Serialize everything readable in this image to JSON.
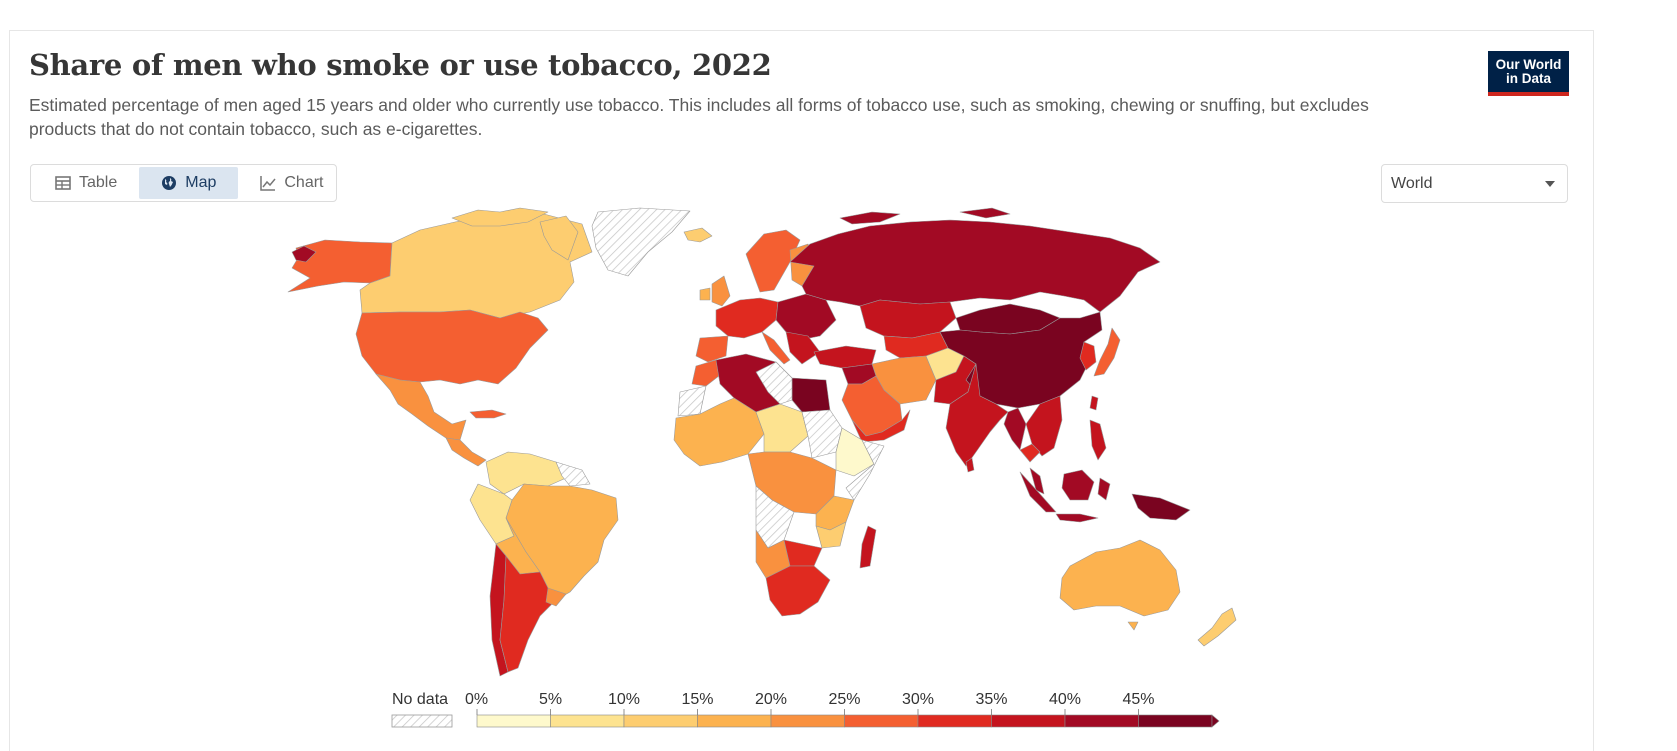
{
  "header": {
    "title": "Share of men who smoke or use tobacco, 2022",
    "subtitle": "Estimated percentage of men aged 15 years and older who currently use tobacco. This includes all forms of tobacco use, such as smoking, chewing or snuffing, but excludes products that do not contain tobacco, such as e-cigarettes.",
    "logo_line1": "Our World",
    "logo_line2": "in Data"
  },
  "tabs": [
    {
      "label": "Table",
      "icon": "table-icon"
    },
    {
      "label": "Map",
      "icon": "globe-icon",
      "active": true
    },
    {
      "label": "Chart",
      "icon": "line-chart-icon"
    }
  ],
  "region_selector": {
    "value": "World"
  },
  "legend": {
    "no_data_label": "No data",
    "ticks": [
      "0%",
      "5%",
      "10%",
      "15%",
      "20%",
      "25%",
      "30%",
      "35%",
      "40%",
      "45%"
    ],
    "colors": [
      "#fef9cc",
      "#fde390",
      "#fdcd70",
      "#fcb24f",
      "#f9913f",
      "#f45f31",
      "#e02a20",
      "#c4141e",
      "#a20a24",
      "#7a0420"
    ]
  }
}
